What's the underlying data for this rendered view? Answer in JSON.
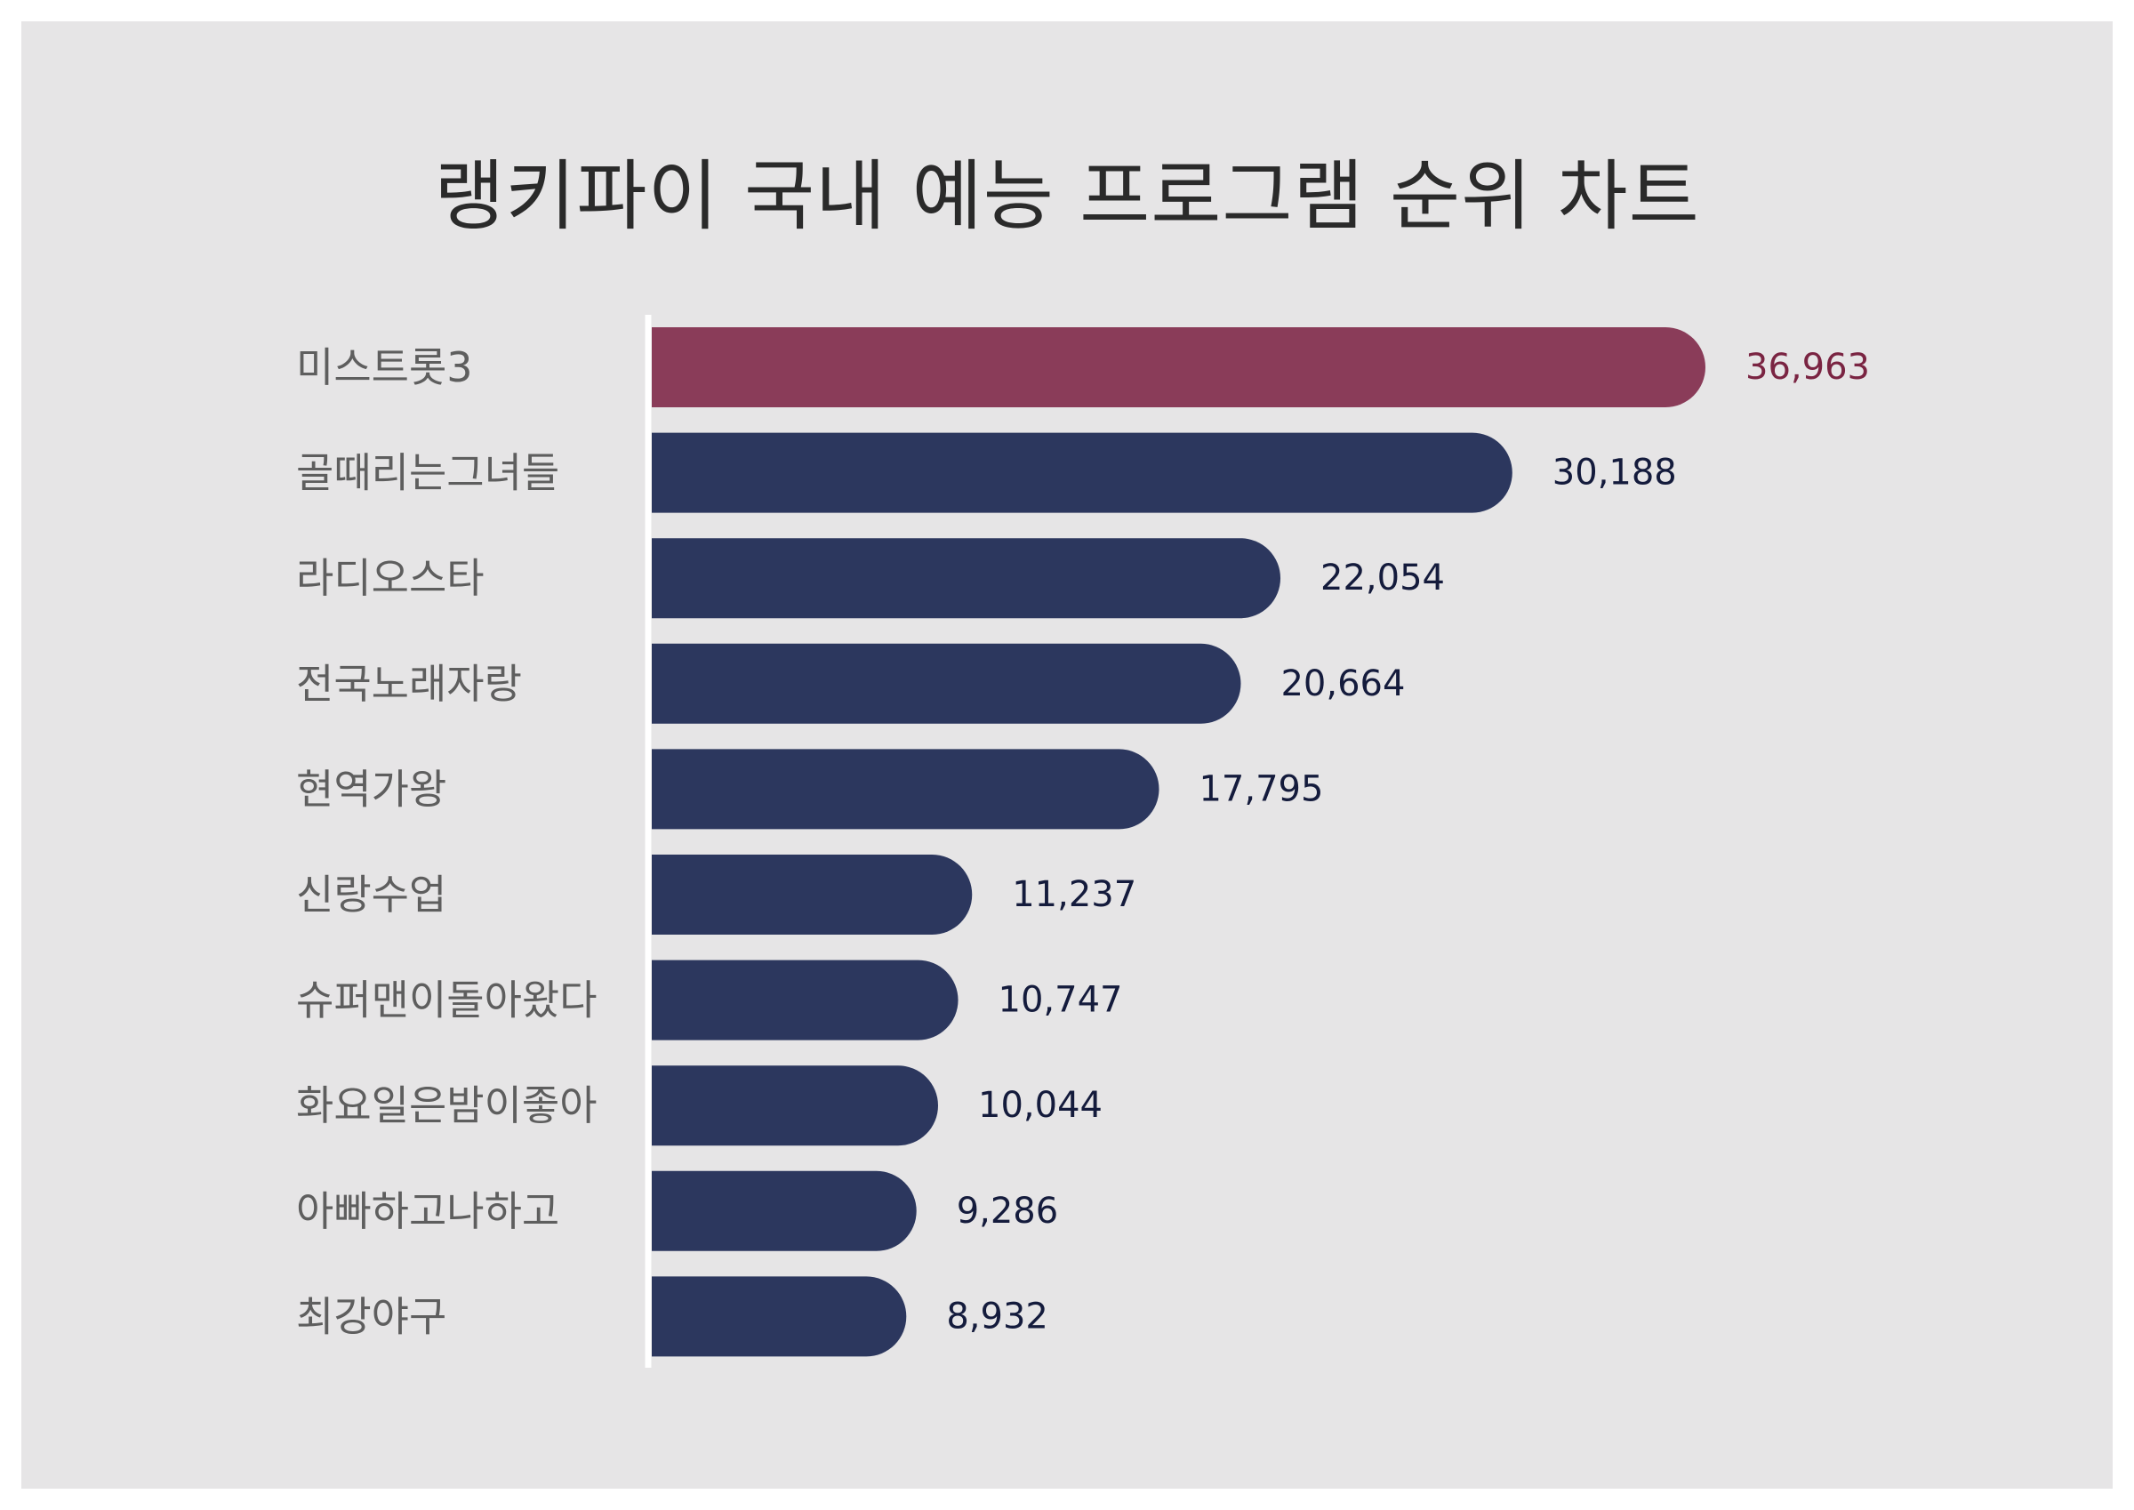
{
  "title": "랭키파이 국내 예능 프로그램 순위 차트",
  "colors": {
    "background": "#e6e5e6",
    "bar": "#2c375e",
    "bar_highlight": "#8a3c59",
    "value_label": "#141b3c",
    "value_label_highlight": "#7a2442",
    "axis": "#ffffff"
  },
  "chart_data": {
    "type": "bar",
    "orientation": "horizontal",
    "title": "랭키파이 국내 예능 프로그램 순위 차트",
    "categories": [
      "미스트롯3",
      "골때리는그녀들",
      "라디오스타",
      "전국노래자랑",
      "현역가왕",
      "신랑수업",
      "슈퍼맨이돌아왔다",
      "화요일은밤이좋아",
      "아빠하고나하고",
      "최강야구"
    ],
    "values": [
      36963,
      30188,
      22054,
      20664,
      17795,
      11237,
      10747,
      10044,
      9286,
      8932
    ],
    "value_labels": [
      "36,963",
      "30,188",
      "22,054",
      "20,664",
      "17,795",
      "11,237",
      "10,747",
      "10,044",
      "9,286",
      "8,932"
    ],
    "highlight_index": 0,
    "xlabel": "",
    "ylabel": "",
    "grid": false,
    "legend": "none"
  }
}
